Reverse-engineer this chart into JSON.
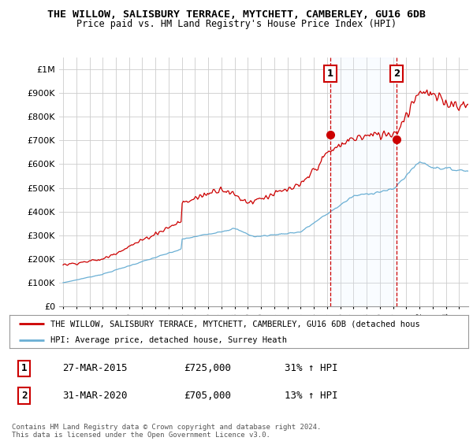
{
  "title": "THE WILLOW, SALISBURY TERRACE, MYTCHETT, CAMBERLEY, GU16 6DB",
  "subtitle": "Price paid vs. HM Land Registry's House Price Index (HPI)",
  "ytick_values": [
    0,
    100000,
    200000,
    300000,
    400000,
    500000,
    600000,
    700000,
    800000,
    900000,
    1000000
  ],
  "ylim": [
    0,
    1050000
  ],
  "xlim_start": 1994.7,
  "xlim_end": 2025.7,
  "red_line_color": "#cc0000",
  "blue_line_color": "#6aafd4",
  "shade_color": "#ddeeff",
  "point1_x": 2015.23,
  "point1_y": 725000,
  "point2_x": 2020.25,
  "point2_y": 705000,
  "vline_color": "#cc0000",
  "legend_red_label": "THE WILLOW, SALISBURY TERRACE, MYTCHETT, CAMBERLEY, GU16 6DB (detached hous",
  "legend_blue_label": "HPI: Average price, detached house, Surrey Heath",
  "table_rows": [
    [
      "1",
      "27-MAR-2015",
      "£725,000",
      "31% ↑ HPI"
    ],
    [
      "2",
      "31-MAR-2020",
      "£705,000",
      "13% ↑ HPI"
    ]
  ],
  "footer": "Contains HM Land Registry data © Crown copyright and database right 2024.\nThis data is licensed under the Open Government Licence v3.0.",
  "background_color": "#ffffff",
  "grid_color": "#cccccc"
}
